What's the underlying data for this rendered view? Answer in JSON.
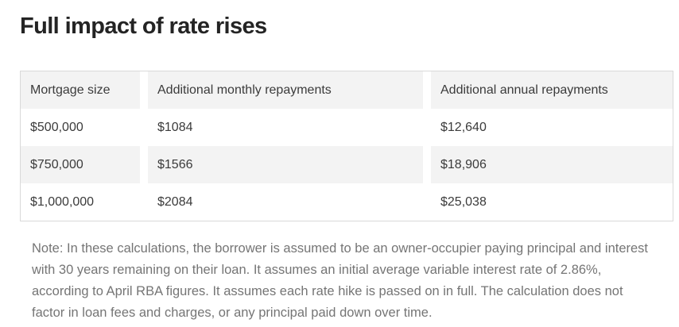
{
  "title": "Full impact of rate rises",
  "table": {
    "columns": [
      "Mortgage size",
      "Additional monthly repayments",
      "Additional annual repayments"
    ],
    "rows": [
      [
        "$500,000",
        "$1084",
        "$12,640"
      ],
      [
        "$750,000",
        "$1566",
        "$18,906"
      ],
      [
        "$1,000,000",
        "$2084",
        "$25,038"
      ]
    ]
  },
  "note": "Note: In these calculations, the borrower is assumed to be an owner-occupier paying principal and interest with 30 years remaining on their loan. It assumes an initial average variable interest rate of 2.86%, according to April RBA figures. It assumes each rate hike is passed on in full. The calculation does not factor in loan fees and charges, or any principal paid down over time.",
  "colors": {
    "header_bg": "#f3f3f3",
    "stripe_bg": "#f3f3f3",
    "table_border": "#d9d9d9",
    "title_text": "#242424",
    "cell_text": "#3b3b3b",
    "note_text": "#757575"
  },
  "chart_data": {
    "type": "table",
    "title": "Full impact of rate rises",
    "columns": [
      "Mortgage size",
      "Additional monthly repayments",
      "Additional annual repayments"
    ],
    "rows": [
      {
        "mortgage_size": "$500,000",
        "additional_monthly_repayments": 1084,
        "additional_annual_repayments": 12640
      },
      {
        "mortgage_size": "$750,000",
        "additional_monthly_repayments": 1566,
        "additional_annual_repayments": 18906
      },
      {
        "mortgage_size": "$1,000,000",
        "additional_monthly_repayments": 2084,
        "additional_annual_repayments": 25038
      }
    ],
    "note": "Assumes owner-occupier, principal and interest, 30 years remaining, initial average variable rate 2.86% (April RBA figures), each hike passed on in full, no fees/charges or principal paydown factored."
  }
}
